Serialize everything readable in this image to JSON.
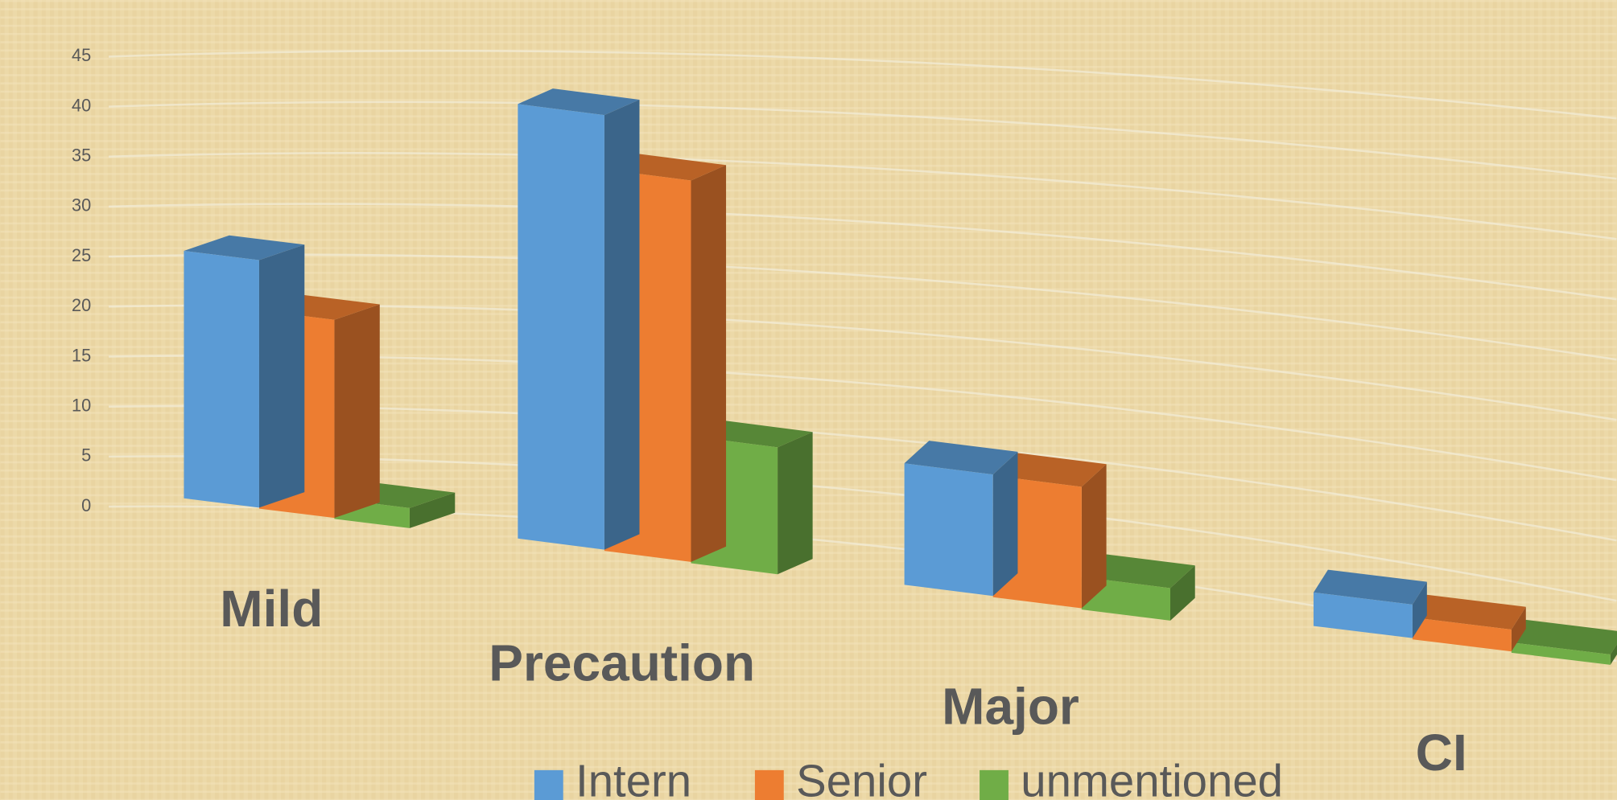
{
  "chart_data": {
    "type": "bar3d",
    "categories": [
      "Mild",
      "Precaution",
      "Major",
      "CI"
    ],
    "series": [
      {
        "name": "Intern",
        "color": "#5b9bd5",
        "values": [
          24,
          40,
          10,
          2
        ]
      },
      {
        "name": "Senior",
        "color": "#ed7d31",
        "values": [
          19,
          35,
          10,
          1
        ]
      },
      {
        "name": "unmentioned",
        "color": "#70ad47",
        "values": [
          1,
          11,
          2,
          0
        ]
      }
    ],
    "ylim": [
      0,
      45
    ],
    "yticks": [
      0,
      5,
      10,
      15,
      20,
      25,
      30,
      35,
      40,
      45
    ],
    "grid": true,
    "legend": "bottom"
  }
}
